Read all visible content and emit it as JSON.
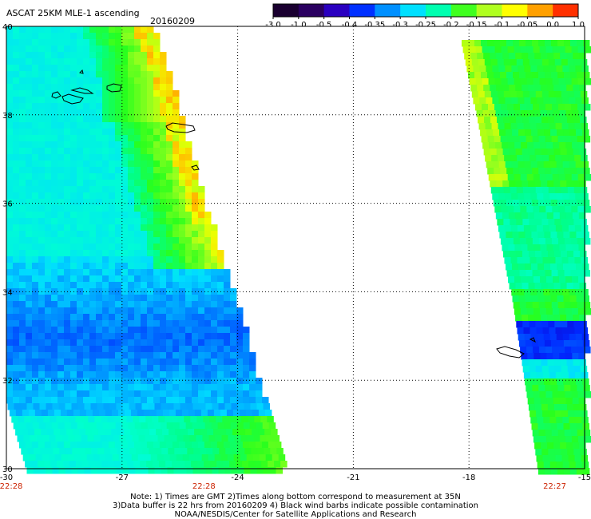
{
  "header": {
    "title": "ASCAT 25KM MLE-1 ascending",
    "date": "20160209"
  },
  "colorbar": {
    "colors": [
      "#1a0030",
      "#2a0060",
      "#2a00c0",
      "#0030ff",
      "#0090ff",
      "#00e0ff",
      "#00ffb0",
      "#40ff20",
      "#b0ff20",
      "#ffff00",
      "#ffa000",
      "#ff3000"
    ],
    "tick_labels": [
      "-3.0",
      "-1.0",
      "-0.5",
      "-0.4",
      "-0.35",
      "-0.3",
      "-0.25",
      "-0.2",
      "-0.15",
      "-0.1",
      "-0.05",
      "0.0",
      "1.0"
    ]
  },
  "map": {
    "lon_labels": [
      "-30",
      "-27",
      "-24",
      "-21",
      "-18",
      "-15"
    ],
    "lat_labels": [
      "40",
      "38",
      "36",
      "34",
      "32",
      "30"
    ],
    "lon_range": [
      -30,
      -15
    ],
    "lat_range": [
      30,
      40
    ],
    "grid": "dotted",
    "time_labels": [
      {
        "text": "22:28",
        "lon": -30
      },
      {
        "text": "22:28",
        "lon": -25
      },
      {
        "text": "22:27",
        "lon": -15.9
      }
    ],
    "time_label_color": "#cc2200"
  },
  "notes": {
    "line1": "Note: 1) Times are GMT 2)Times along bottom correspond to measurement at 35N",
    "line2": "3)Data buffer is 22 hrs from 20160209 4) Black wind barbs indicate possible contamination",
    "line3": "NOAA/NESDIS/Center for Satellite Applications and Research"
  }
}
